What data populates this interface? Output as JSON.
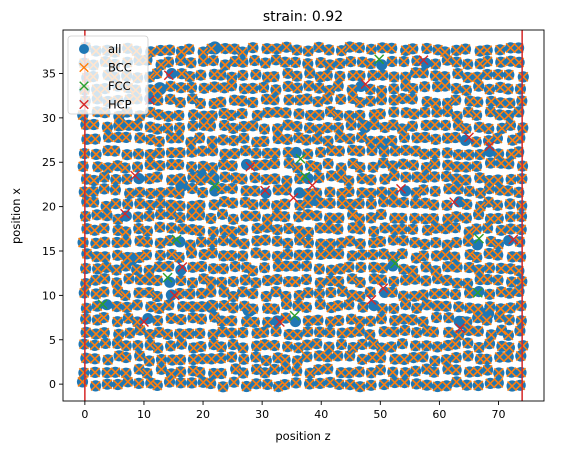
{
  "chart_data": {
    "type": "scatter",
    "title": "strain: 0.92",
    "xlabel": "position z",
    "ylabel": "position x",
    "xlim": [
      -3.7,
      77.7
    ],
    "ylim": [
      -1.9,
      39.9
    ],
    "x_ticks": [
      0,
      10,
      20,
      30,
      40,
      50,
      60,
      70
    ],
    "y_ticks": [
      0,
      5,
      10,
      15,
      20,
      25,
      30,
      35
    ],
    "x_tick_labels": [
      "0",
      "10",
      "20",
      "30",
      "40",
      "50",
      "60",
      "70"
    ],
    "y_tick_labels": [
      "0",
      "5",
      "10",
      "15",
      "20",
      "25",
      "30",
      "35"
    ],
    "grid": false,
    "legend": {
      "position": "upper-left",
      "entries": [
        "all",
        "BCC",
        "FCC",
        "HCP"
      ]
    },
    "vertical_lines": [
      0,
      74
    ],
    "vertical_line_color": "#d62728",
    "lattice": {
      "z_spacing": 1.8,
      "x_spacing": 1.45,
      "z_max": 74,
      "x_max": 38
    },
    "series": [
      {
        "name": "all",
        "marker": "circle",
        "color": "#1f77b4",
        "description": "every atom"
      },
      {
        "name": "BCC",
        "marker": "x",
        "color": "#ff7f0e"
      },
      {
        "name": "FCC",
        "marker": "x",
        "color": "#2ca02c",
        "points": [
          [
            3,
            9
          ],
          [
            15.5,
            16.3
          ],
          [
            22,
            22.3
          ],
          [
            36.5,
            25.4
          ],
          [
            37.3,
            23.4
          ],
          [
            35.5,
            7.7
          ],
          [
            49.8,
            36.6
          ],
          [
            52.5,
            13.6
          ],
          [
            66.7,
            16.4
          ],
          [
            66.5,
            10.3
          ],
          [
            14,
            12
          ]
        ]
      },
      {
        "name": "HCP",
        "marker": "x",
        "color": "#d62728",
        "points": [
          [
            6.8,
            19.2
          ],
          [
            8.5,
            23.5
          ],
          [
            11,
            32
          ],
          [
            14.2,
            34.8
          ],
          [
            15.2,
            10
          ],
          [
            16.5,
            13.2
          ],
          [
            28,
            24.5
          ],
          [
            30.5,
            21.8
          ],
          [
            33,
            7
          ],
          [
            35.3,
            21
          ],
          [
            38.5,
            22.4
          ],
          [
            47.5,
            33.8
          ],
          [
            48.5,
            9.5
          ],
          [
            50.5,
            10.8
          ],
          [
            53.5,
            22
          ],
          [
            57.3,
            36.5
          ],
          [
            62.5,
            20.5
          ],
          [
            63.5,
            6.3
          ],
          [
            65,
            27.8
          ],
          [
            68.5,
            26.8
          ],
          [
            72.5,
            16.3
          ],
          [
            10,
            7
          ]
        ]
      }
    ]
  }
}
